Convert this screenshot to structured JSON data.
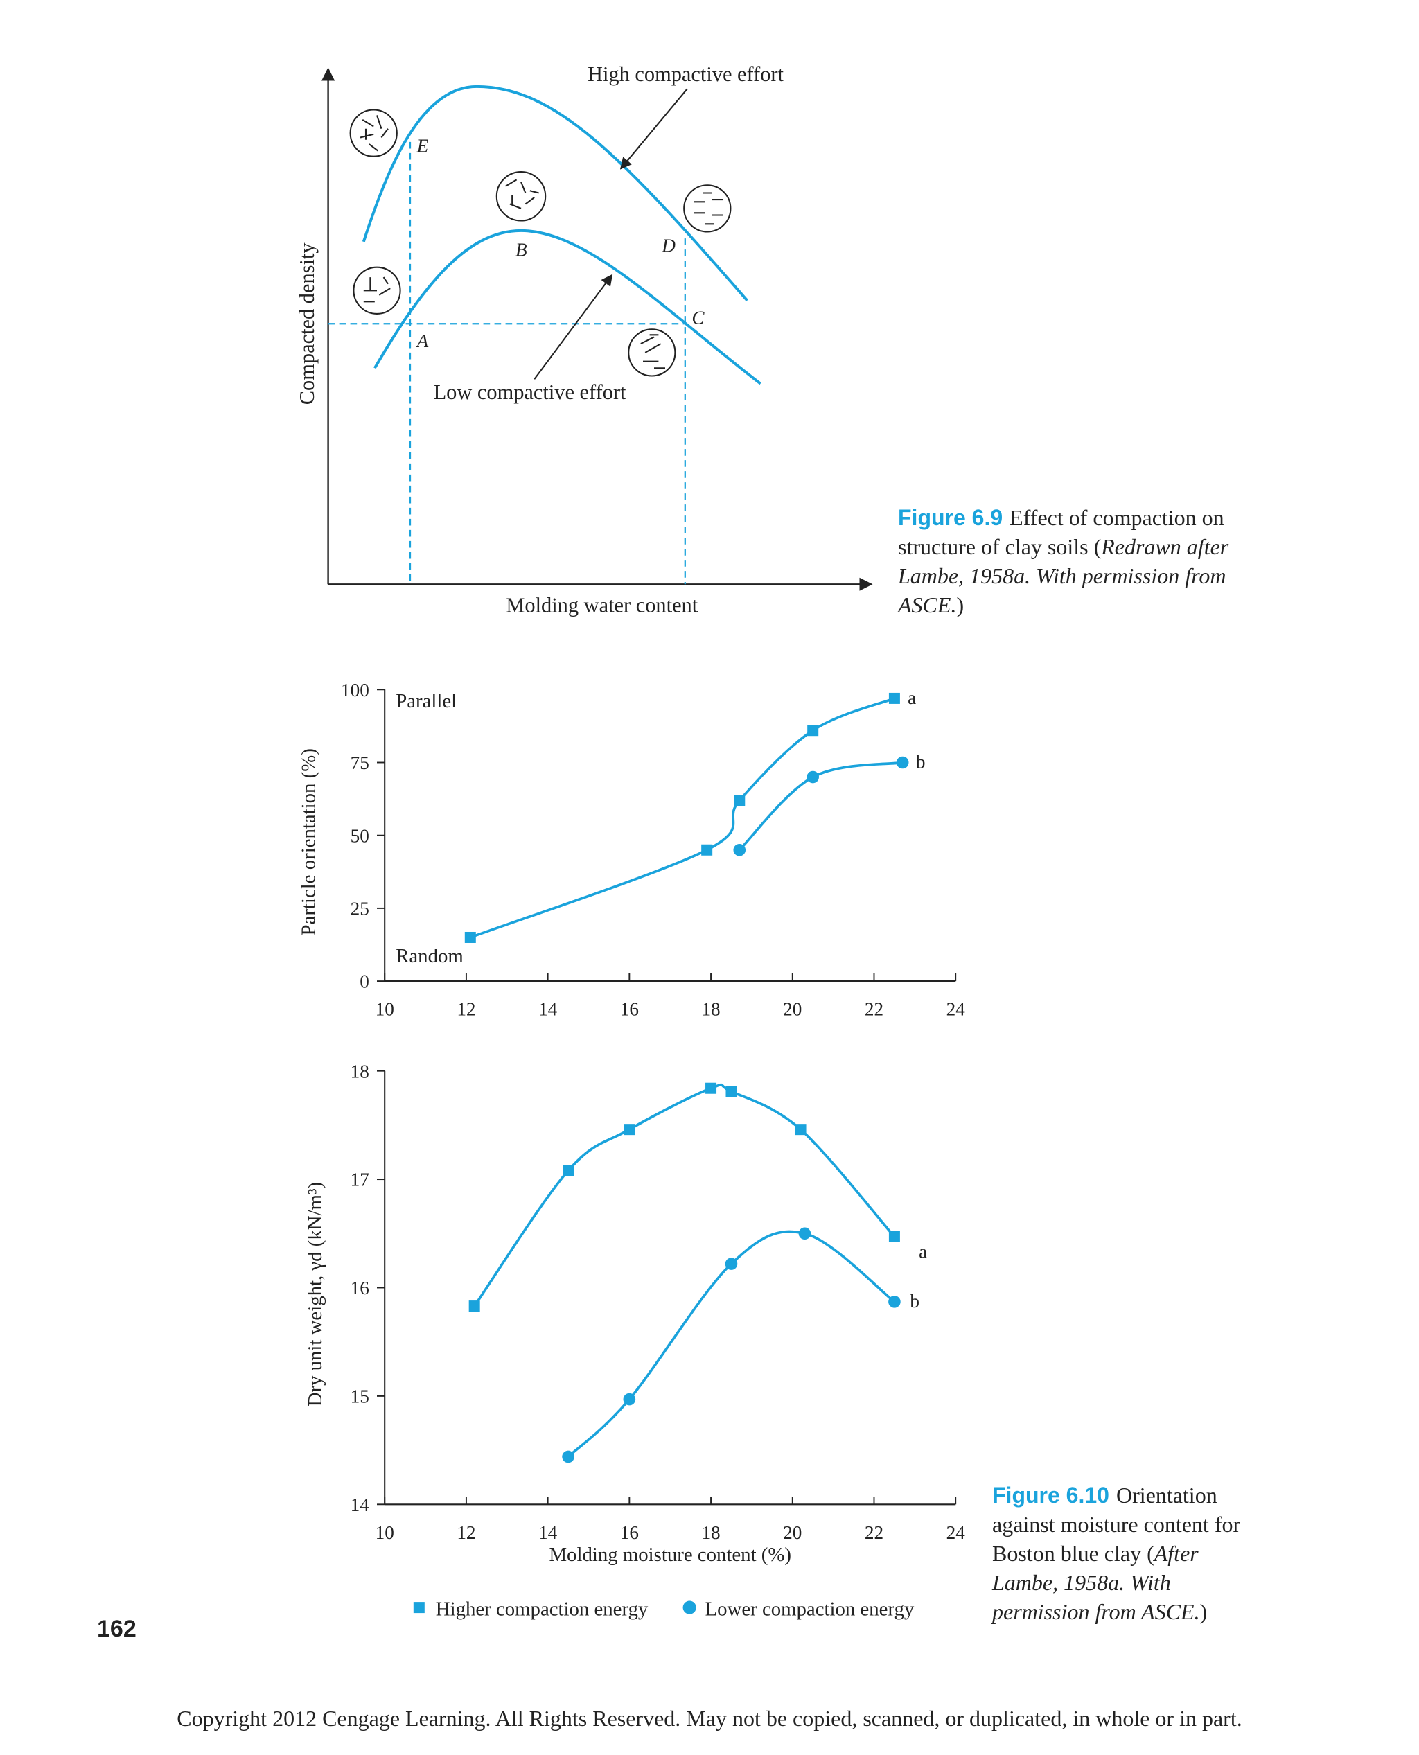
{
  "figure_6_9": {
    "y_label": "Compacted density",
    "x_label": "Molding water content",
    "high_label": "High compactive effort",
    "low_label": "Low compactive effort",
    "points": [
      "A",
      "B",
      "C",
      "D",
      "E"
    ],
    "caption": {
      "number": "Figure 6.9",
      "text": "Effect of compaction on structure of clay soils (",
      "italic": "Redrawn after Lambe, 1958a. With permission from ASCE.",
      "close": ")"
    }
  },
  "chart_data": [
    {
      "type": "line",
      "ylabel": "Particle orientation (%)",
      "annotations": [
        "Parallel",
        "Random"
      ],
      "xlim": [
        10,
        24
      ],
      "xticks": [
        10,
        12,
        14,
        16,
        18,
        20,
        22,
        24
      ],
      "ylim": [
        0,
        100
      ],
      "yticks": [
        0,
        25,
        50,
        75,
        100
      ],
      "series": [
        {
          "label": "a",
          "marker": "square",
          "color": "#1aa3dc",
          "x": [
            12.1,
            17.9,
            18.7,
            20.5,
            22.5
          ],
          "values": [
            15,
            45,
            62,
            86,
            97
          ]
        },
        {
          "label": "b",
          "marker": "circle",
          "color": "#1aa3dc",
          "x": [
            18.7,
            20.5,
            22.7
          ],
          "values": [
            45,
            70,
            75
          ]
        }
      ]
    },
    {
      "type": "line",
      "ylabel": "Dry unit weight, γd (kN/m³)",
      "xlabel": "Molding moisture content (%)",
      "xlim": [
        10,
        24
      ],
      "xticks": [
        10,
        12,
        14,
        16,
        18,
        20,
        22,
        24
      ],
      "ylim": [
        14,
        18
      ],
      "yticks": [
        14,
        15,
        16,
        17,
        18
      ],
      "series": [
        {
          "name": "Higher compaction energy",
          "label": "a",
          "marker": "square",
          "color": "#1aa3dc",
          "x": [
            12.2,
            14.5,
            16,
            18,
            18.5,
            20.2,
            22.5
          ],
          "values": [
            15.83,
            17.08,
            17.46,
            17.84,
            17.81,
            17.46,
            16.47
          ]
        },
        {
          "name": "Lower compaction energy",
          "label": "b",
          "marker": "circle",
          "color": "#1aa3dc",
          "x": [
            14.5,
            16,
            18.5,
            20.3,
            22.5
          ],
          "values": [
            14.44,
            14.97,
            16.22,
            16.5,
            15.87
          ]
        }
      ]
    }
  ],
  "figure_6_10_caption": {
    "number": "Figure 6.10",
    "text": "Orientation against moisture content for Boston blue clay (",
    "italic": "After Lambe, 1958a. With permission from ASCE.",
    "close": ")"
  },
  "page_number": "162",
  "copyright": "Copyright 2012 Cengage Learning. All Rights Reserved. May not be copied, scanned, or duplicated, in whole or in part."
}
